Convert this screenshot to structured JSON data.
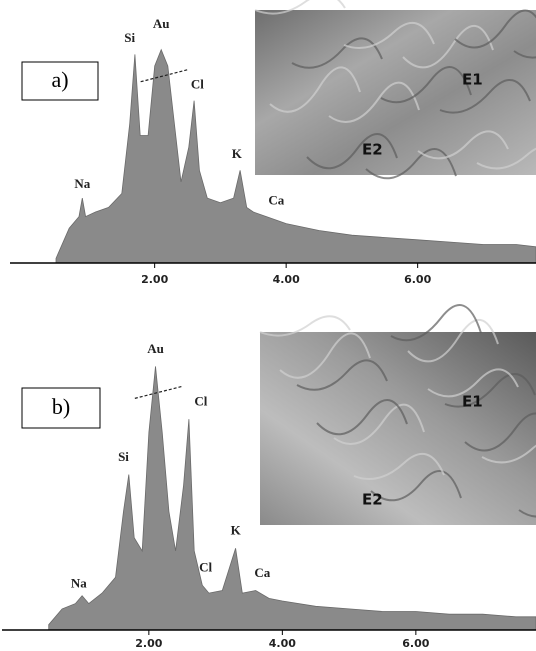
{
  "chart_data": [
    {
      "type": "area",
      "panel_label": "a)",
      "image_labels": [
        "E1",
        "E2"
      ],
      "color": "#8a8a8a",
      "x": [
        0.5,
        0.7,
        0.85,
        0.9,
        0.95,
        1.1,
        1.3,
        1.5,
        1.62,
        1.7,
        1.78,
        1.9,
        2.0,
        2.1,
        2.2,
        2.3,
        2.4,
        2.52,
        2.6,
        2.68,
        2.8,
        3.0,
        3.2,
        3.3,
        3.4,
        3.5,
        3.7,
        4.0,
        4.5,
        5.0,
        5.5,
        6.0,
        6.5,
        7.0,
        7.5,
        7.8
      ],
      "values": [
        2,
        15,
        20,
        28,
        20,
        22,
        24,
        30,
        60,
        90,
        55,
        55,
        85,
        92,
        85,
        60,
        35,
        50,
        70,
        40,
        28,
        26,
        28,
        40,
        24,
        22,
        20,
        17,
        14,
        12,
        11,
        10,
        9,
        8,
        8,
        7
      ],
      "xlim": [
        -0.2,
        7.8
      ],
      "ylim": [
        0,
        110
      ],
      "xticks": [
        {
          "value": 2,
          "label": "2.00"
        },
        {
          "value": 4,
          "label": "4.00"
        },
        {
          "value": 6,
          "label": "6.00"
        }
      ],
      "annotations": [
        {
          "text": "Na",
          "x": 0.9,
          "y": 31
        },
        {
          "text": "Si",
          "x": 1.62,
          "y": 94
        },
        {
          "text": "Au",
          "x": 2.1,
          "y": 100
        },
        {
          "text": "Cl",
          "x": 2.65,
          "y": 74
        },
        {
          "text": "K",
          "x": 3.25,
          "y": 44
        },
        {
          "text": "Ca",
          "x": 3.85,
          "y": 24
        }
      ]
    },
    {
      "type": "area",
      "panel_label": "b)",
      "image_labels": [
        "E1",
        "E2"
      ],
      "color": "#8a8a8a",
      "x": [
        0.5,
        0.7,
        0.9,
        1.0,
        1.1,
        1.3,
        1.5,
        1.62,
        1.7,
        1.78,
        1.9,
        2.0,
        2.1,
        2.2,
        2.3,
        2.4,
        2.52,
        2.6,
        2.68,
        2.8,
        2.9,
        3.1,
        3.3,
        3.4,
        3.6,
        3.8,
        4.0,
        4.5,
        5.0,
        5.5,
        6.0,
        6.5,
        7.0,
        7.5,
        7.8
      ],
      "values": [
        2,
        8,
        10,
        13,
        10,
        14,
        20,
        45,
        59,
        35,
        30,
        75,
        100,
        75,
        45,
        30,
        55,
        80,
        30,
        17,
        14,
        15,
        31,
        14,
        15,
        12,
        11,
        9,
        8,
        7,
        7,
        6,
        6,
        5,
        5
      ],
      "xlim": [
        -0.2,
        7.8
      ],
      "ylim": [
        0,
        110
      ],
      "xticks": [
        {
          "value": 2,
          "label": "2.00"
        },
        {
          "value": 4,
          "label": "4.00"
        },
        {
          "value": 6,
          "label": "6.00"
        }
      ],
      "annotations": [
        {
          "text": "Na",
          "x": 0.95,
          "y": 15
        },
        {
          "text": "Si",
          "x": 1.62,
          "y": 63
        },
        {
          "text": "Au",
          "x": 2.1,
          "y": 104
        },
        {
          "text": "Cl",
          "x": 2.78,
          "y": 84
        },
        {
          "text": "Cl",
          "x": 2.85,
          "y": 21
        },
        {
          "text": "K",
          "x": 3.3,
          "y": 35
        },
        {
          "text": "Ca",
          "x": 3.7,
          "y": 19
        }
      ]
    }
  ]
}
